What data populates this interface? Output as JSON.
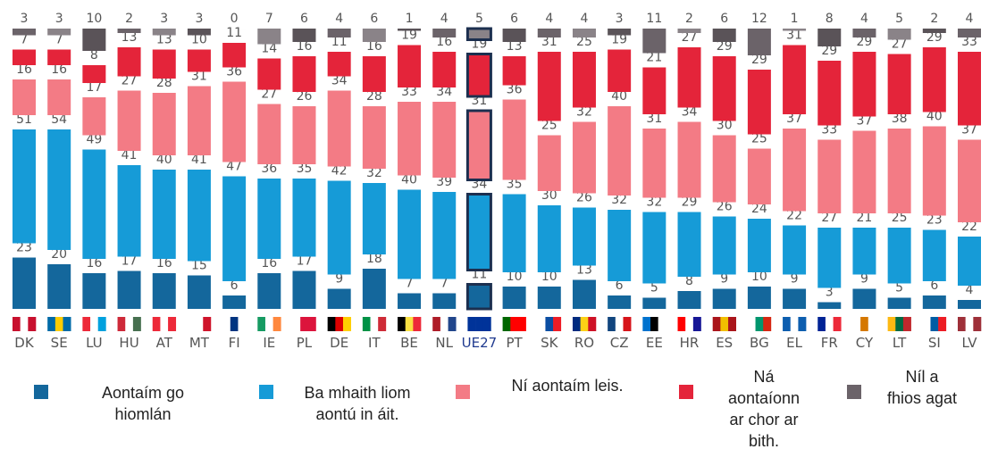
{
  "chart_data": {
    "type": "stacked_bar",
    "categories": [
      "DK",
      "SE",
      "LU",
      "HU",
      "AT",
      "MT",
      "FI",
      "IE",
      "PL",
      "DE",
      "IT",
      "BE",
      "NL",
      "UE27",
      "PT",
      "SK",
      "RO",
      "CZ",
      "EE",
      "HR",
      "ES",
      "BG",
      "EL",
      "FR",
      "CY",
      "LT",
      "SI",
      "LV"
    ],
    "highlight": "UE27",
    "series": [
      {
        "name": "Aontaím go hiomlán",
        "color": "#14679c",
        "values": [
          23,
          20,
          16,
          17,
          16,
          15,
          6,
          16,
          17,
          9,
          18,
          7,
          7,
          11,
          10,
          10,
          13,
          6,
          5,
          8,
          9,
          10,
          9,
          3,
          9,
          5,
          6,
          4
        ]
      },
      {
        "name": "Ba mhaith liom aontú in áit.",
        "color": "#169bd7",
        "values": [
          51,
          54,
          49,
          41,
          40,
          41,
          47,
          36,
          35,
          42,
          32,
          40,
          39,
          34,
          35,
          30,
          26,
          32,
          32,
          29,
          26,
          24,
          22,
          27,
          21,
          25,
          23,
          22
        ]
      },
      {
        "name": "Ní aontaím leis.",
        "color": "#f37b85",
        "values": [
          16,
          16,
          17,
          27,
          28,
          31,
          36,
          27,
          26,
          34,
          28,
          33,
          34,
          31,
          36,
          25,
          32,
          40,
          31,
          34,
          30,
          25,
          37,
          33,
          37,
          38,
          40,
          37
        ]
      },
      {
        "name": "Ná aontaíonn ar chor ar bith.",
        "color": "#e4243a",
        "values": [
          7,
          7,
          8,
          13,
          13,
          10,
          11,
          14,
          16,
          11,
          16,
          19,
          16,
          19,
          13,
          31,
          25,
          19,
          21,
          27,
          29,
          29,
          31,
          29,
          29,
          27,
          29,
          33
        ]
      },
      {
        "name": "Níl a fhios agat",
        "color": "#6b6369",
        "values": [
          3,
          3,
          10,
          2,
          3,
          3,
          0,
          7,
          6,
          4,
          6,
          1,
          4,
          5,
          6,
          4,
          4,
          3,
          11,
          2,
          6,
          12,
          1,
          8,
          4,
          5,
          2,
          4
        ]
      }
    ]
  }
}
